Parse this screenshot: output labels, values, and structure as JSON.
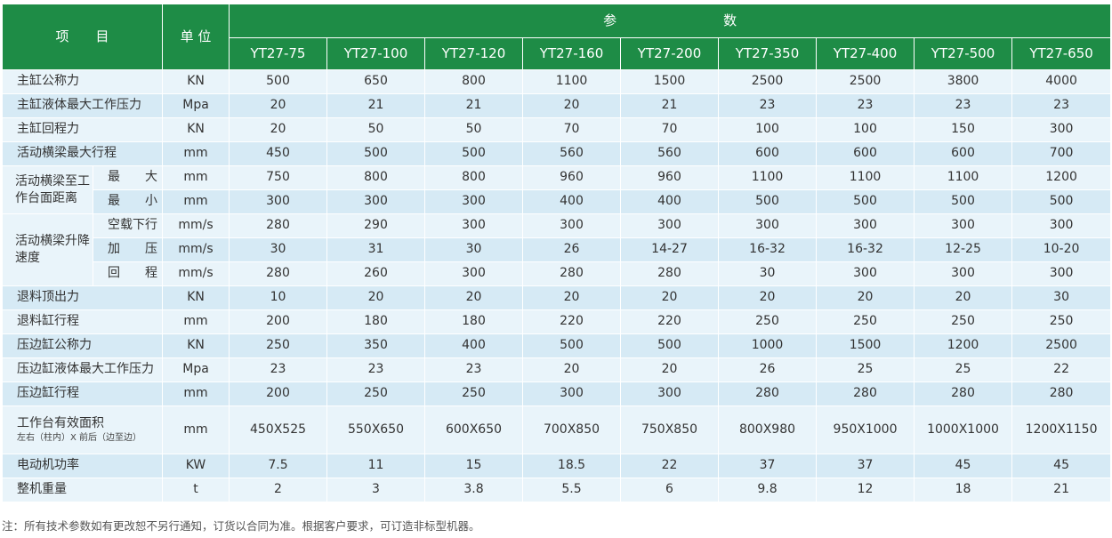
{
  "header": {
    "item": "项　　目",
    "unit": "单 位",
    "params": "参　　　　　　　　数",
    "models": [
      "YT27-75",
      "YT27-100",
      "YT27-120",
      "YT27-160",
      "YT27-200",
      "YT27-350",
      "YT27-400",
      "YT27-500",
      "YT27-650"
    ]
  },
  "rows": [
    {
      "label": "主缸公称力",
      "unit": "KN",
      "values": [
        "500",
        "650",
        "800",
        "1100",
        "1500",
        "2500",
        "2500",
        "3800",
        "4000"
      ]
    },
    {
      "label": "主缸液体最大工作压力",
      "unit": "Mpa",
      "values": [
        "20",
        "21",
        "21",
        "20",
        "21",
        "23",
        "23",
        "23",
        "23"
      ]
    },
    {
      "label": "主缸回程力",
      "unit": "KN",
      "values": [
        "20",
        "50",
        "50",
        "70",
        "70",
        "100",
        "100",
        "150",
        "300"
      ]
    },
    {
      "label": "活动横梁最大行程",
      "unit": "mm",
      "values": [
        "450",
        "500",
        "500",
        "560",
        "560",
        "600",
        "600",
        "600",
        "700"
      ]
    }
  ],
  "distance_group": {
    "label": "活动横梁至工作台面距离",
    "rows": [
      {
        "label": "最　　大",
        "unit": "mm",
        "values": [
          "750",
          "800",
          "800",
          "960",
          "960",
          "1100",
          "1100",
          "1100",
          "1200"
        ]
      },
      {
        "label": "最　　小",
        "unit": "mm",
        "values": [
          "300",
          "300",
          "300",
          "400",
          "400",
          "500",
          "500",
          "500",
          "500"
        ]
      }
    ]
  },
  "speed_group": {
    "label": "活动横梁升降速度",
    "rows": [
      {
        "label": "空载下行",
        "unit": "mm/s",
        "values": [
          "280",
          "290",
          "300",
          "300",
          "300",
          "300",
          "300",
          "300",
          "300"
        ]
      },
      {
        "label": "加　　压",
        "unit": "mm/s",
        "values": [
          "30",
          "31",
          "30",
          "26",
          "14-27",
          "16-32",
          "16-32",
          "12-25",
          "10-20"
        ]
      },
      {
        "label": "回　　程",
        "unit": "mm/s",
        "values": [
          "280",
          "260",
          "300",
          "280",
          "280",
          "30",
          "300",
          "300",
          "300"
        ]
      }
    ]
  },
  "rows2": [
    {
      "label": "退料顶出力",
      "unit": "KN",
      "values": [
        "10",
        "20",
        "20",
        "20",
        "20",
        "20",
        "20",
        "20",
        "30"
      ]
    },
    {
      "label": "退料缸行程",
      "unit": "mm",
      "values": [
        "200",
        "180",
        "180",
        "220",
        "220",
        "250",
        "250",
        "250",
        "250"
      ]
    },
    {
      "label": "压边缸公称力",
      "unit": "KN",
      "values": [
        "250",
        "350",
        "400",
        "500",
        "500",
        "1000",
        "1500",
        "1200",
        "2500"
      ]
    },
    {
      "label": "压边缸液体最大工作压力",
      "unit": "Mpa",
      "values": [
        "23",
        "23",
        "23",
        "20",
        "20",
        "26",
        "25",
        "25",
        "22"
      ]
    },
    {
      "label": "压边缸行程",
      "unit": "mm",
      "values": [
        "200",
        "250",
        "250",
        "300",
        "300",
        "280",
        "280",
        "280",
        "280"
      ]
    }
  ],
  "table_area": {
    "label": "工作台有效面积",
    "sublabel": "左右（柱内）X 前后（边至边）",
    "unit": "mm",
    "values": [
      "450X525",
      "550X650",
      "600X650",
      "700X850",
      "750X850",
      "800X980",
      "950X1000",
      "1000X1000",
      "1200X1150"
    ]
  },
  "rows3": [
    {
      "label": "电动机功率",
      "unit": "KW",
      "values": [
        "7.5",
        "11",
        "15",
        "18.5",
        "22",
        "37",
        "37",
        "45",
        "45"
      ]
    },
    {
      "label": "整机重量",
      "unit": "t",
      "values": [
        "2",
        "3",
        "3.8",
        "5.5",
        "6",
        "9.8",
        "12",
        "18",
        "21"
      ]
    }
  ],
  "note": "注：所有技术参数如有更改恕不另行通知，订货以合同为准。根据客户要求，可订造非标型机器。"
}
